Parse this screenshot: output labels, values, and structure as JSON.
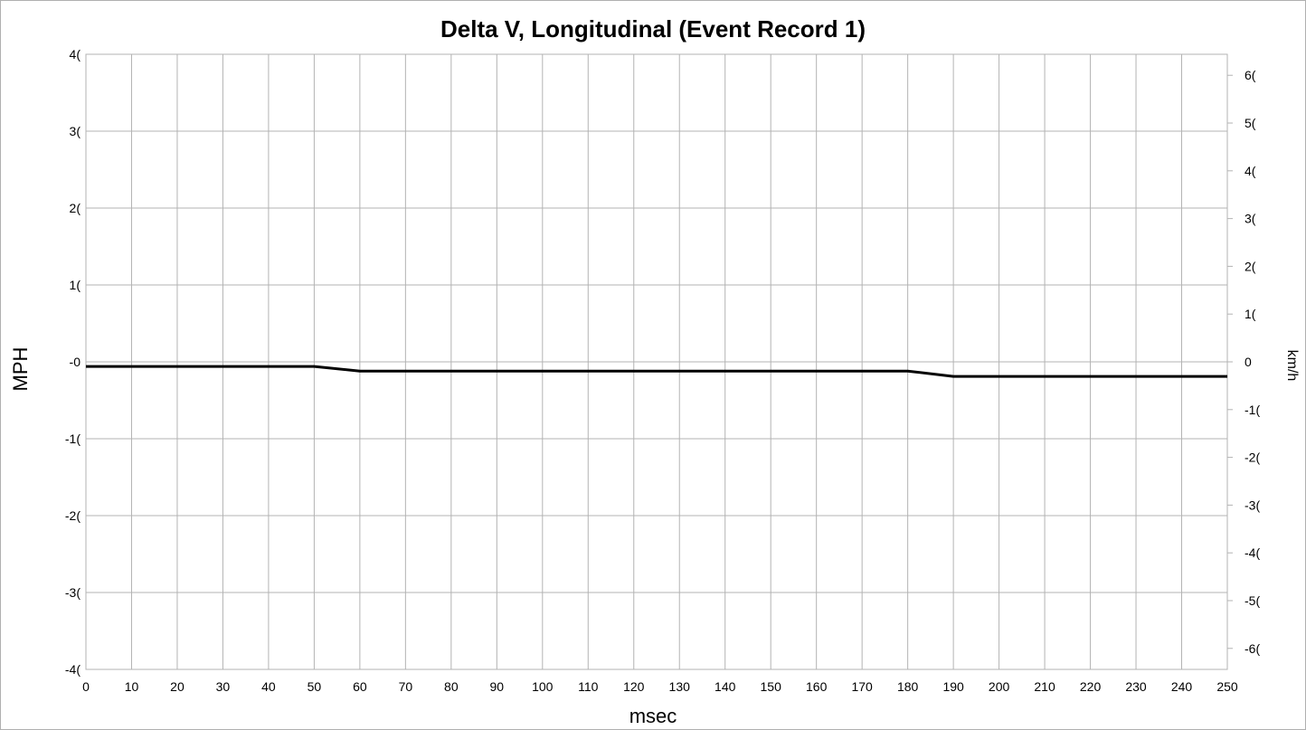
{
  "chart_data": {
    "type": "line",
    "title": "Delta V, Longitudinal (Event Record 1)",
    "xlabel": "msec",
    "ylabel": "MPH",
    "ylabel_right": "km/h",
    "xlim": [
      0,
      250
    ],
    "ylim": [
      -40,
      40
    ],
    "ylim_right": [
      -64.4,
      64.4
    ],
    "grid": true,
    "x_ticks": [
      "0",
      "10",
      "20",
      "30",
      "40",
      "50",
      "60",
      "70",
      "80",
      "90",
      "100",
      "110",
      "120",
      "130",
      "140",
      "150",
      "160",
      "170",
      "180",
      "190",
      "200",
      "210",
      "220",
      "230",
      "240",
      "250"
    ],
    "y_ticks_left": [
      {
        "value": 40,
        "label": "4("
      },
      {
        "value": 30,
        "label": "3("
      },
      {
        "value": 20,
        "label": "2("
      },
      {
        "value": 10,
        "label": "1("
      },
      {
        "value": 0,
        "label": "-0"
      },
      {
        "value": -10,
        "label": "-1("
      },
      {
        "value": -20,
        "label": "-2("
      },
      {
        "value": -30,
        "label": "-3("
      },
      {
        "value": -40,
        "label": "-4("
      }
    ],
    "y_ticks_right": [
      {
        "value": 60,
        "label": "6("
      },
      {
        "value": 50,
        "label": "5("
      },
      {
        "value": 40,
        "label": "4("
      },
      {
        "value": 30,
        "label": "3("
      },
      {
        "value": 20,
        "label": "2("
      },
      {
        "value": 10,
        "label": "1("
      },
      {
        "value": 0,
        "label": "0"
      },
      {
        "value": -10,
        "label": "-1("
      },
      {
        "value": -20,
        "label": "-2("
      },
      {
        "value": -30,
        "label": "-3("
      },
      {
        "value": -40,
        "label": "-4("
      },
      {
        "value": -50,
        "label": "-5("
      },
      {
        "value": -60,
        "label": "-6("
      }
    ],
    "series": [
      {
        "color": "#000000",
        "x": [
          0,
          10,
          20,
          30,
          40,
          50,
          60,
          70,
          80,
          90,
          100,
          110,
          120,
          130,
          140,
          150,
          160,
          170,
          180,
          190,
          200,
          210,
          220,
          230,
          240,
          250
        ],
        "y": [
          -0.6,
          -0.6,
          -0.6,
          -0.6,
          -0.6,
          -0.6,
          -1.2,
          -1.2,
          -1.2,
          -1.2,
          -1.2,
          -1.2,
          -1.2,
          -1.2,
          -1.2,
          -1.2,
          -1.2,
          -1.2,
          -1.2,
          -1.9,
          -1.9,
          -1.9,
          -1.9,
          -1.9,
          -1.9,
          -1.9
        ]
      }
    ]
  }
}
